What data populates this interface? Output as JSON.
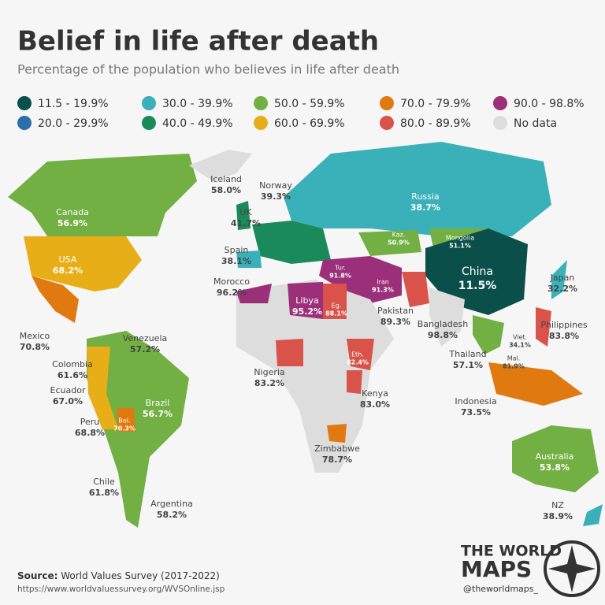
{
  "header": {
    "title": "Belief in life after death",
    "subtitle": "Percentage of the population who believes in life after death"
  },
  "legend": [
    {
      "label": "11.5 - 19.9%",
      "color": "#0b4f4a"
    },
    {
      "label": "20.0 - 29.9%",
      "color": "#2b6ea8"
    },
    {
      "label": "30.0 - 39.9%",
      "color": "#3ab0b8"
    },
    {
      "label": "40.0 - 49.9%",
      "color": "#1a8a5a"
    },
    {
      "label": "50.0 - 59.9%",
      "color": "#72b043"
    },
    {
      "label": "60.0 - 69.9%",
      "color": "#e8ae18"
    },
    {
      "label": "70.0 - 79.9%",
      "color": "#e07a10"
    },
    {
      "label": "80.0 - 89.9%",
      "color": "#d9534a"
    },
    {
      "label": "90.0 - 98.8%",
      "color": "#9b2f7a"
    },
    {
      "label": "No data",
      "color": "#dddddd"
    }
  ],
  "countries": [
    {
      "name": "Iceland",
      "value": "58.0%"
    },
    {
      "name": "Norway",
      "value": "39.3%"
    },
    {
      "name": "UK",
      "value": "41.7%"
    },
    {
      "name": "Canada",
      "value": "56.9%"
    },
    {
      "name": "USA",
      "value": "68.2%"
    },
    {
      "name": "Russia",
      "value": "38.7%"
    },
    {
      "name": "Kaz.",
      "value": "50.9%"
    },
    {
      "name": "Mongolia",
      "value": "51.1%"
    },
    {
      "name": "Spain",
      "value": "38.1%"
    },
    {
      "name": "Morocco",
      "value": "96.2%"
    },
    {
      "name": "Tur.",
      "value": "91.8%"
    },
    {
      "name": "Iran",
      "value": "91.3%"
    },
    {
      "name": "China",
      "value": "11.5%"
    },
    {
      "name": "Japan",
      "value": "32.2%"
    },
    {
      "name": "Libya",
      "value": "95.2%"
    },
    {
      "name": "Eg.",
      "value": "88.1%"
    },
    {
      "name": "Pakistan",
      "value": "89.3%"
    },
    {
      "name": "Bangladesh",
      "value": "98.8%"
    },
    {
      "name": "Viet.",
      "value": "34.1%"
    },
    {
      "name": "Philippines",
      "value": "83.8%"
    },
    {
      "name": "Mexico",
      "value": "70.8%"
    },
    {
      "name": "Venezuela",
      "value": "57.2%"
    },
    {
      "name": "Thailand",
      "value": "57.1%"
    },
    {
      "name": "Mal.",
      "value": "81.9%"
    },
    {
      "name": "Eth.",
      "value": "82.4%"
    },
    {
      "name": "Colombia",
      "value": "61.6%"
    },
    {
      "name": "Nigeria",
      "value": "83.2%"
    },
    {
      "name": "Ecuador",
      "value": "67.0%"
    },
    {
      "name": "Kenya",
      "value": "83.0%"
    },
    {
      "name": "Indonesia",
      "value": "73.5%"
    },
    {
      "name": "Brazil",
      "value": "56.7%"
    },
    {
      "name": "Peru",
      "value": "68.8%"
    },
    {
      "name": "Bol.",
      "value": "70.3%"
    },
    {
      "name": "Zimbabwe",
      "value": "78.7%"
    },
    {
      "name": "Australia",
      "value": "53.8%"
    },
    {
      "name": "Chile",
      "value": "61.8%"
    },
    {
      "name": "Argentina",
      "value": "58.2%"
    },
    {
      "name": "NZ",
      "value": "38.9%"
    }
  ],
  "footer": {
    "source_label": "Source:",
    "source": "World Values Survey (2017-2022)",
    "url": "https://www.worldvaluessurvey.org/WVSOnline.jsp"
  },
  "logo": {
    "line1": "THE WORLD",
    "line2": "MAPS",
    "handle": "@theworldmaps_"
  }
}
